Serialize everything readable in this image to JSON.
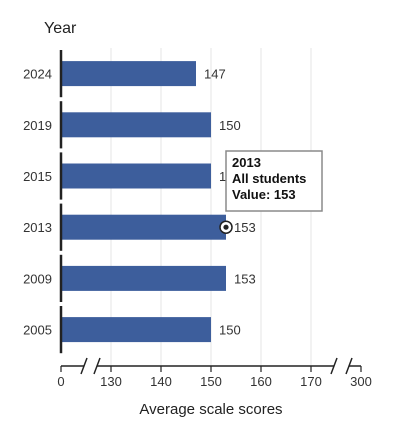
{
  "chart_data": {
    "type": "bar",
    "orientation": "horizontal",
    "y_axis_title": "Year",
    "xlabel": "Average scale scores",
    "categories": [
      "2024",
      "2019",
      "2015",
      "2013",
      "2009",
      "2005"
    ],
    "values": [
      147,
      150,
      150,
      153,
      153,
      150
    ],
    "x_ticks": [
      "0",
      "130",
      "140",
      "150",
      "160",
      "170",
      "300"
    ],
    "axis_breaks": true,
    "grid": true,
    "bar_color": "#3d5e9c",
    "tooltip": {
      "title": "2013",
      "line2": "All students",
      "line3": "Value: 153"
    }
  }
}
